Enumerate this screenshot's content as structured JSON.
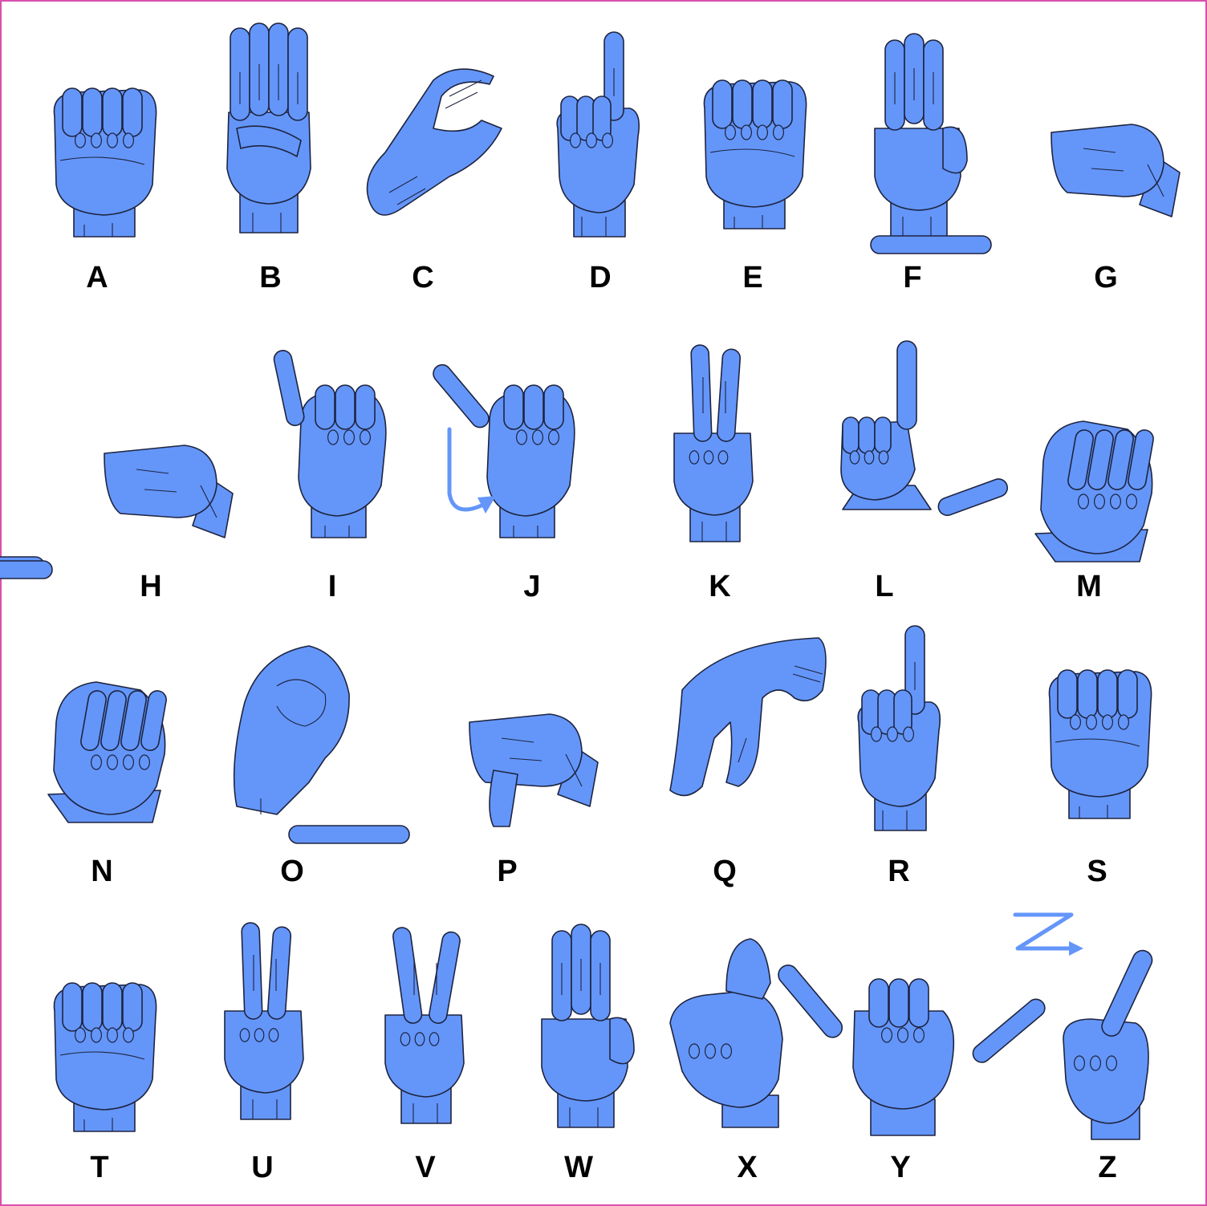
{
  "alphabet": [
    {
      "letter": "A",
      "icon": "a-handshape-icon",
      "shape": "fist"
    },
    {
      "letter": "B",
      "icon": "b-handshape-icon",
      "shape": "flat"
    },
    {
      "letter": "C",
      "icon": "c-handshape-icon",
      "shape": "curve"
    },
    {
      "letter": "D",
      "icon": "d-handshape-icon",
      "shape": "index-up"
    },
    {
      "letter": "E",
      "icon": "e-handshape-icon",
      "shape": "fist"
    },
    {
      "letter": "F",
      "icon": "f-handshape-icon",
      "shape": "three-up"
    },
    {
      "letter": "G",
      "icon": "g-handshape-icon",
      "shape": "point-left"
    },
    {
      "letter": "H",
      "icon": "h-handshape-icon",
      "shape": "two-left"
    },
    {
      "letter": "I",
      "icon": "i-handshape-icon",
      "shape": "pinky-up"
    },
    {
      "letter": "J",
      "icon": "j-handshape-icon",
      "shape": "pinky-diag"
    },
    {
      "letter": "K",
      "icon": "k-handshape-icon",
      "shape": "two-up"
    },
    {
      "letter": "L",
      "icon": "l-handshape-icon",
      "shape": "l-shape"
    },
    {
      "letter": "M",
      "icon": "m-handshape-icon",
      "shape": "fist-angled"
    },
    {
      "letter": "N",
      "icon": "n-handshape-icon",
      "shape": "fist-angled"
    },
    {
      "letter": "O",
      "icon": "o-handshape-icon",
      "shape": "round"
    },
    {
      "letter": "P",
      "icon": "p-handshape-icon",
      "shape": "point-left-down"
    },
    {
      "letter": "Q",
      "icon": "q-handshape-icon",
      "shape": "point-down"
    },
    {
      "letter": "R",
      "icon": "r-handshape-icon",
      "shape": "index-up"
    },
    {
      "letter": "S",
      "icon": "s-handshape-icon",
      "shape": "fist"
    },
    {
      "letter": "T",
      "icon": "t-handshape-icon",
      "shape": "fist"
    },
    {
      "letter": "U",
      "icon": "u-handshape-icon",
      "shape": "two-up"
    },
    {
      "letter": "V",
      "icon": "v-handshape-icon",
      "shape": "v-up"
    },
    {
      "letter": "W",
      "icon": "w-handshape-icon",
      "shape": "three-up"
    },
    {
      "letter": "X",
      "icon": "x-handshape-icon",
      "shape": "hook"
    },
    {
      "letter": "Y",
      "icon": "y-handshape-icon",
      "shape": "y-shape"
    },
    {
      "letter": "Z",
      "icon": "z-handshape-icon",
      "shape": "index-diag"
    }
  ],
  "motion_marks": [
    {
      "letter": "J",
      "icon": "j-motion-arrow-icon"
    },
    {
      "letter": "Z",
      "icon": "z-motion-arrow-icon"
    }
  ],
  "colors": {
    "hand_fill": "#6496fa",
    "outline": "#1e2440",
    "frame_border": "#d94fae",
    "label": "#000000"
  }
}
